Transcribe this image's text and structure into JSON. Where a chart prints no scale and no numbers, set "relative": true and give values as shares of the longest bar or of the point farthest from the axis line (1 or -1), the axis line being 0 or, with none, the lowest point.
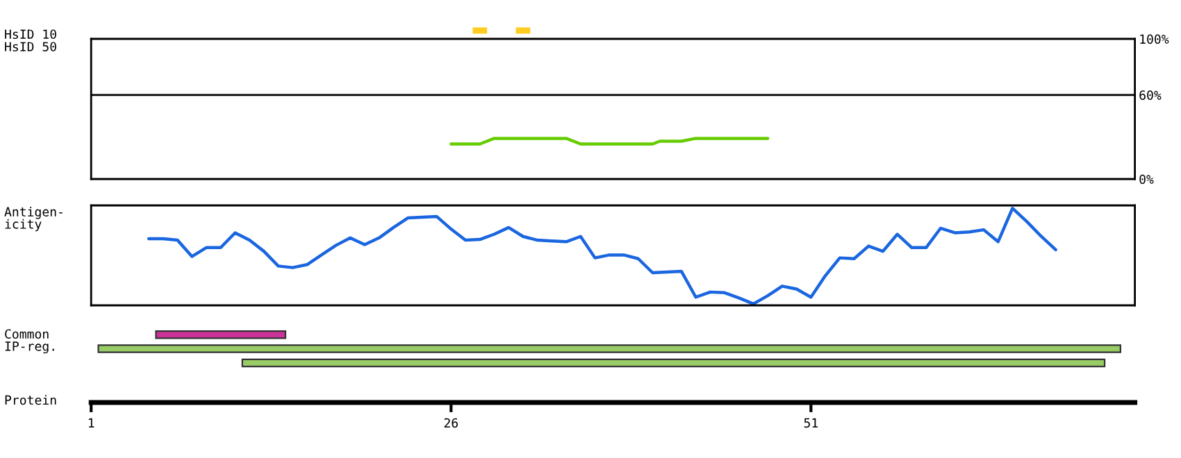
{
  "chart_data": [
    {
      "type": "bar",
      "orientation": "horizontal",
      "ylabel": "HsID 10",
      "categories": [
        null
      ],
      "xlim": [
        1,
        73.5
      ],
      "tick_labels": false,
      "series": [
        {
          "color": "#ffcc22",
          "values": [
            1
          ],
          "base": [
            27.5
          ]
        },
        {
          "color": "#ffcc22",
          "values": [
            1
          ],
          "base": [
            30.5
          ]
        }
      ]
    },
    {
      "type": "line",
      "ylabel": "HsID 50",
      "xlim": [
        1,
        73.5
      ],
      "ylim": [
        0,
        100
      ],
      "yticks": [
        {
          "value": 0,
          "label": "0%"
        },
        {
          "value": 60,
          "label": "60%"
        },
        {
          "value": 100,
          "label": "100%"
        }
      ],
      "tick_labels": "y",
      "ref_lines": [
        {
          "axis": "y",
          "value": 60,
          "color": "#000000"
        }
      ],
      "series": [
        {
          "color": "#66cc00",
          "x": [
            26,
            28,
            29,
            34,
            35,
            40,
            40.5,
            42,
            43,
            48
          ],
          "values": [
            25,
            25,
            29,
            29,
            25,
            25,
            27,
            27,
            29,
            29
          ]
        }
      ]
    },
    {
      "type": "line",
      "ylabel": "Antigen-\nicity",
      "relative": true,
      "xlim": [
        1,
        73.5
      ],
      "tick_labels": false,
      "series": [
        {
          "color": "#1a66e0",
          "x": [
            5,
            6,
            7,
            8,
            9,
            10,
            11,
            12,
            13,
            14,
            15,
            16,
            17,
            18,
            19,
            20,
            21,
            22,
            23,
            24,
            25,
            26,
            27,
            28,
            29,
            30,
            31,
            32,
            33,
            34,
            35,
            36,
            37,
            38,
            39,
            40,
            41,
            42,
            43,
            44,
            45,
            46,
            47,
            48,
            49,
            50,
            51,
            52,
            53,
            54,
            55,
            56,
            57,
            58,
            59,
            60,
            61,
            62,
            63,
            64,
            65,
            66,
            67,
            68
          ],
          "values": [
            0.687,
            0.687,
            0.672,
            0.504,
            0.595,
            0.595,
            0.748,
            0.672,
            0.557,
            0.405,
            0.389,
            0.42,
            0.519,
            0.618,
            0.695,
            0.626,
            0.695,
            0.802,
            0.901,
            0.908,
            0.916,
            0.786,
            0.672,
            0.679,
            0.733,
            0.802,
            0.71,
            0.672,
            0.664,
            0.656,
            0.71,
            0.489,
            0.519,
            0.519,
            0.481,
            0.336,
            0.344,
            0.351,
            0.084,
            0.137,
            0.13,
            0.076,
            0.015,
            0.099,
            0.198,
            0.168,
            0.084,
            0.305,
            0.489,
            0.481,
            0.611,
            0.557,
            0.733,
            0.595,
            0.595,
            0.794,
            0.748,
            0.756,
            0.779,
            0.656,
            1.0,
            0.863,
            0.71,
            0.573
          ]
        }
      ]
    },
    {
      "type": "bar",
      "orientation": "horizontal",
      "ylabel": "Common\nIP-reg.",
      "xlabel": "Protein",
      "categories": [
        null,
        null,
        null
      ],
      "xlim": [
        1,
        73.5
      ],
      "xticks": [
        1,
        26,
        51
      ],
      "tick_labels": "x",
      "base": [
        5.5,
        1.5,
        11.5
      ],
      "values": [
        9,
        71,
        59.9
      ],
      "colors": [
        "#cc3399",
        "#99cc66",
        "#99cc66"
      ]
    }
  ]
}
